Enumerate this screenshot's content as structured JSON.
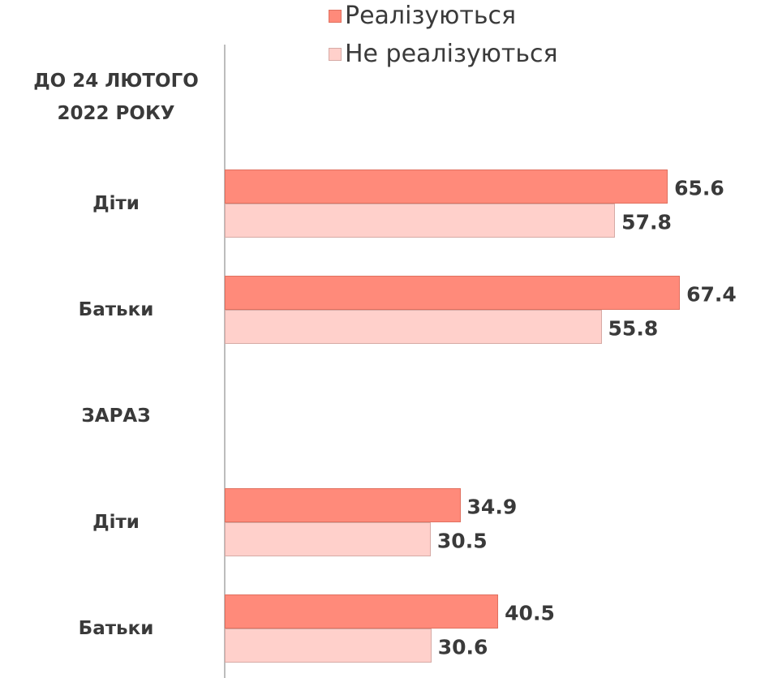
{
  "chart_data": {
    "type": "hbar",
    "categories": [
      "ДО 24 ЛЮТОГО 2022 РОКУ",
      "Діти",
      "Батьки",
      "ЗАРАЗ",
      "Діти",
      "Батьки"
    ],
    "series": [
      {
        "name": "Реалізуються",
        "color": "#ff8a7a",
        "values": [
          null,
          65.6,
          67.4,
          null,
          34.9,
          40.5
        ]
      },
      {
        "name": "Не реалізуються",
        "color": "#ffd0cb",
        "values": [
          null,
          57.8,
          55.8,
          null,
          30.5,
          30.6
        ]
      }
    ],
    "xlim": [
      0,
      80
    ],
    "legend": "top"
  }
}
